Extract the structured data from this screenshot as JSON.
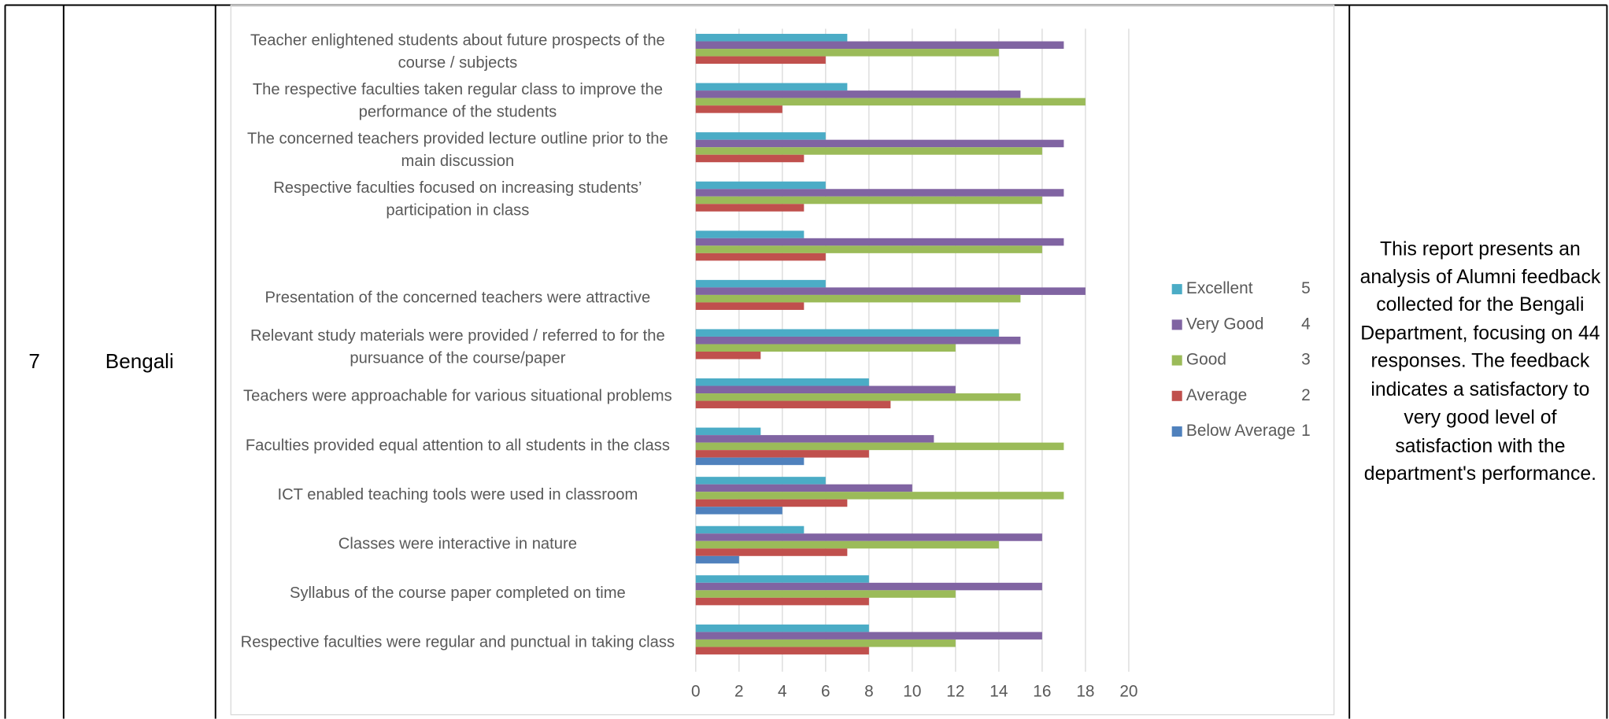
{
  "table": {
    "row": [
      "7",
      "Bengali"
    ],
    "note": "This report presents an analysis of Alumni feedback collected for the Bengali Department, focusing on 44 responses. The feedback indicates a satisfactory to very good level of satisfaction with the department's performance."
  },
  "chart_data": {
    "type": "hbar",
    "categories": [
      "Teacher enlightened students about future prospects of the course / subjects",
      "The respective faculties taken regular class to improve the performance of the students",
      "The concerned teachers provided lecture outline prior to the main discussion",
      "Respective faculties focused on increasing students’ participation in class",
      null,
      "Presentation of the concerned teachers were attractive",
      "Relevant study materials were provided / referred to for the pursuance of the course/paper",
      "Teachers were approachable for various situational problems",
      "Faculties provided equal attention to all students in the class",
      "ICT enabled teaching tools were used in classroom",
      "Classes were interactive in nature",
      "Syllabus of the course paper  completed on time",
      "Respective faculties were regular and punctual in taking class"
    ],
    "series": [
      {
        "name": "Excellent",
        "score": 5,
        "color": "#4bacc6",
        "values": [
          7,
          7,
          6,
          6,
          5,
          6,
          14,
          8,
          3,
          6,
          5,
          8,
          8
        ]
      },
      {
        "name": "Very Good",
        "score": 4,
        "color": "#8064a2",
        "values": [
          17,
          15,
          17,
          17,
          17,
          18,
          15,
          12,
          11,
          10,
          16,
          16,
          16
        ]
      },
      {
        "name": "Good",
        "score": 3,
        "color": "#9bbb59",
        "values": [
          14,
          18,
          16,
          16,
          16,
          15,
          12,
          15,
          17,
          17,
          14,
          12,
          12
        ]
      },
      {
        "name": "Average",
        "score": 2,
        "color": "#c0504d",
        "values": [
          6,
          4,
          5,
          5,
          6,
          5,
          3,
          9,
          8,
          7,
          7,
          8,
          8
        ]
      },
      {
        "name": "Below Average",
        "score": 1,
        "color": "#4f81bd",
        "values": [
          0,
          0,
          0,
          0,
          0,
          0,
          0,
          0,
          5,
          4,
          2,
          0,
          0
        ]
      }
    ],
    "xlim": [
      0,
      20
    ],
    "xticks": [
      0,
      2,
      4,
      6,
      8,
      10,
      12,
      14,
      16,
      18,
      20
    ],
    "grid": true,
    "legend": "right"
  }
}
